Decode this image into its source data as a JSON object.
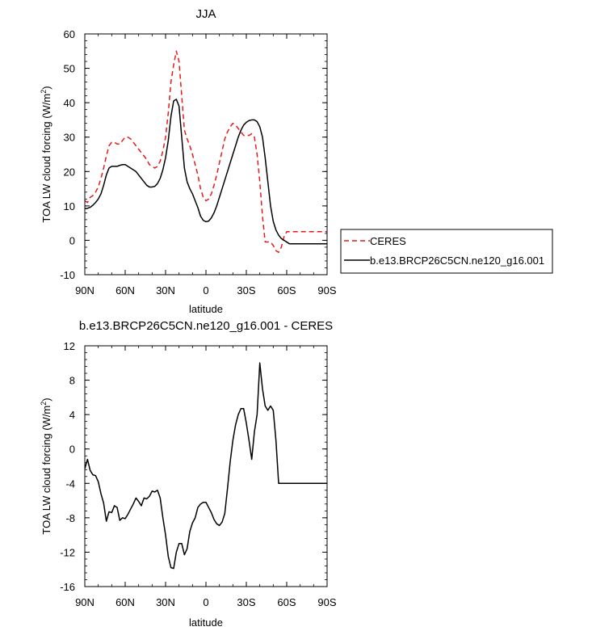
{
  "chart_data": [
    {
      "type": "line",
      "title": "JJA",
      "xlabel": "latitude",
      "ylabel_main": "TOA LW cloud forcing (W/m",
      "ylabel_sup": "2",
      "ylabel_close": ")",
      "xlim": [
        90,
        -90
      ],
      "ylim": [
        -10,
        60
      ],
      "xticks": [
        90,
        60,
        30,
        0,
        -30,
        -60,
        -90
      ],
      "xtick_labels": [
        "90N",
        "60N",
        "30N",
        "0",
        "30S",
        "60S",
        "90S"
      ],
      "yticks": [
        -10,
        0,
        10,
        20,
        30,
        40,
        50,
        60
      ],
      "ytick_labels": [
        "-10",
        "0",
        "10",
        "20",
        "30",
        "40",
        "50",
        "60"
      ],
      "legend_position": "right",
      "series": [
        {
          "name": "CERES",
          "color": "#e41a1c",
          "dash": true,
          "x": [
            90,
            88,
            86,
            84,
            82,
            80,
            78,
            76,
            74,
            72,
            70,
            68,
            66,
            64,
            62,
            60,
            58,
            56,
            54,
            52,
            50,
            48,
            46,
            44,
            42,
            40,
            38,
            36,
            34,
            32,
            30,
            28,
            26,
            24,
            22,
            20,
            18,
            16,
            14,
            12,
            10,
            8,
            6,
            4,
            2,
            0,
            -2,
            -4,
            -6,
            -8,
            -10,
            -12,
            -14,
            -16,
            -18,
            -20,
            -22,
            -24,
            -26,
            -28,
            -30,
            -32,
            -34,
            -36,
            -38,
            -40,
            -42,
            -44,
            -46,
            -48,
            -50,
            -52,
            -54,
            -56,
            -58,
            -60,
            -62,
            -64,
            -66,
            -68,
            -70,
            -72,
            -74,
            -76,
            -78,
            -80,
            -82,
            -84,
            -86,
            -88,
            -90
          ],
          "values": [
            11.5,
            11,
            12.5,
            13,
            14,
            15.5,
            18,
            21,
            24.5,
            27.5,
            28.5,
            28.5,
            28,
            28,
            29,
            30,
            30,
            29.5,
            28.5,
            27.5,
            26.5,
            25.5,
            24.5,
            23.5,
            22,
            21.5,
            21,
            21.5,
            23,
            26,
            30,
            37,
            46,
            51,
            55,
            52,
            42,
            32,
            29.5,
            27.5,
            25,
            22,
            19,
            15,
            12.5,
            11.5,
            12,
            13.5,
            16,
            19,
            22.5,
            26,
            29.5,
            31.5,
            33,
            34,
            33.5,
            32.5,
            31.5,
            30.5,
            30.5,
            30.5,
            31,
            30,
            25,
            17,
            7,
            -0.5,
            -0.5,
            -0.5,
            -1.5,
            -3,
            -3.5,
            -2,
            1,
            2.5,
            2.5,
            2.5,
            2.5,
            2.5,
            2.5,
            2.5,
            2.5,
            2.5,
            2.5,
            2.5,
            2.5,
            2.5,
            2.5,
            2.5,
            2.5
          ]
        },
        {
          "name": "b.e13.BRCP26C5CN.ne120_g16.001",
          "color": "#000000",
          "dash": false,
          "x": [
            90,
            88,
            86,
            84,
            82,
            80,
            78,
            76,
            74,
            72,
            70,
            68,
            66,
            64,
            62,
            60,
            58,
            56,
            54,
            52,
            50,
            48,
            46,
            44,
            42,
            40,
            38,
            36,
            34,
            32,
            30,
            28,
            26,
            24,
            22,
            20,
            18,
            16,
            14,
            12,
            10,
            8,
            6,
            4,
            2,
            0,
            -2,
            -4,
            -6,
            -8,
            -10,
            -12,
            -14,
            -16,
            -18,
            -20,
            -22,
            -24,
            -26,
            -28,
            -30,
            -32,
            -34,
            -36,
            -38,
            -40,
            -42,
            -44,
            -46,
            -48,
            -50,
            -52,
            -54,
            -56,
            -58,
            -60,
            -62,
            -64,
            -66,
            -68,
            -70,
            -72,
            -74,
            -76,
            -78,
            -80,
            -82,
            -84,
            -86,
            -88,
            -90
          ],
          "values": [
            9.2,
            9.3,
            9.6,
            10.2,
            11,
            12,
            13.5,
            16,
            19,
            21,
            21.5,
            21.5,
            21.5,
            21.8,
            22,
            22,
            21.5,
            21,
            20.5,
            20,
            19,
            18,
            17,
            16,
            15.5,
            15.5,
            15.7,
            16.5,
            18,
            20.5,
            24,
            29,
            36,
            40.5,
            41,
            39,
            30,
            21,
            17,
            15,
            13.5,
            11.5,
            9.5,
            7,
            5.8,
            5.4,
            5.6,
            6.5,
            8,
            10,
            12.5,
            15,
            17.5,
            20,
            22.5,
            25,
            27.5,
            30,
            32,
            33.5,
            34.3,
            34.8,
            35,
            35,
            34.5,
            33,
            30,
            24,
            17,
            10,
            5.5,
            3,
            1.5,
            0.5,
            0,
            -0.5,
            -1,
            -1,
            -1,
            -1,
            -1,
            -1,
            -1,
            -1,
            -1,
            -1,
            -1,
            -1,
            -1,
            -1,
            -1
          ]
        }
      ]
    },
    {
      "type": "line",
      "title": "b.e13.BRCP26C5CN.ne120_g16.001 - CERES",
      "xlabel": "latitude",
      "ylabel_main": "TOA LW cloud forcing (W/m",
      "ylabel_sup": "2",
      "ylabel_close": ")",
      "xlim": [
        90,
        -90
      ],
      "ylim": [
        -16,
        12
      ],
      "xticks": [
        90,
        60,
        30,
        0,
        -30,
        -60,
        -90
      ],
      "xtick_labels": [
        "90N",
        "60N",
        "30N",
        "0",
        "30S",
        "60S",
        "90S"
      ],
      "yticks": [
        -16,
        -12,
        -8,
        -4,
        0,
        4,
        8,
        12
      ],
      "ytick_labels": [
        "-16",
        "-12",
        "-8",
        "-4",
        "0",
        "4",
        "8",
        "12"
      ],
      "series": [
        {
          "name": "b.e13.BRCP26C5CN.ne120_g16.001 - CERES",
          "color": "#000000",
          "dash": false,
          "x": [
            90,
            88,
            86,
            84,
            82,
            80,
            78,
            76,
            74,
            72,
            70,
            68,
            66,
            64,
            62,
            60,
            58,
            56,
            54,
            52,
            50,
            48,
            46,
            44,
            42,
            40,
            38,
            36,
            34,
            32,
            30,
            28,
            26,
            24,
            22,
            20,
            18,
            16,
            14,
            12,
            10,
            8,
            6,
            4,
            2,
            0,
            -2,
            -4,
            -6,
            -8,
            -10,
            -12,
            -14,
            -16,
            -18,
            -20,
            -22,
            -24,
            -26,
            -28,
            -30,
            -32,
            -34,
            -36,
            -38,
            -40,
            -42,
            -44,
            -46,
            -48,
            -50,
            -52,
            -54,
            -56,
            -58,
            -60,
            -62,
            -64,
            -66,
            -68,
            -70,
            -72,
            -74,
            -76,
            -78,
            -80,
            -82,
            -84,
            -86,
            -88,
            -90
          ],
          "values": [
            -2.3,
            -1.2,
            -2.5,
            -3,
            -3.1,
            -3.8,
            -5.2,
            -6.3,
            -8.4,
            -7.3,
            -7.4,
            -6.6,
            -6.8,
            -8.3,
            -8,
            -8.1,
            -7.6,
            -7,
            -6.4,
            -5.7,
            -6.1,
            -6.6,
            -5.7,
            -5.8,
            -5.5,
            -4.9,
            -5.0,
            -4.8,
            -5.7,
            -8.0,
            -10.0,
            -12.5,
            -13.8,
            -13.9,
            -12,
            -11,
            -11,
            -12.3,
            -11.6,
            -9.6,
            -8.6,
            -8.0,
            -6.8,
            -6.4,
            -6.2,
            -6.2,
            -6.8,
            -7.4,
            -8.2,
            -8.7,
            -8.9,
            -8.5,
            -7.5,
            -4.6,
            -1.5,
            1.0,
            2.8,
            4.0,
            4.7,
            4.7,
            3.0,
            1.0,
            -1.2,
            2.0,
            4.0,
            10.0,
            7.0,
            5.0,
            4.5,
            5.0,
            4.5,
            1.0,
            -4.0,
            -4.0,
            -4.0,
            -4.0,
            -4.0,
            -4.0,
            -4.0,
            -4.0,
            -4.0,
            -4.0,
            -4.0,
            -4.0,
            -4.0,
            -4.0,
            -4.0,
            -4.0,
            -4.0,
            -4.0,
            -4.0
          ]
        }
      ]
    }
  ]
}
